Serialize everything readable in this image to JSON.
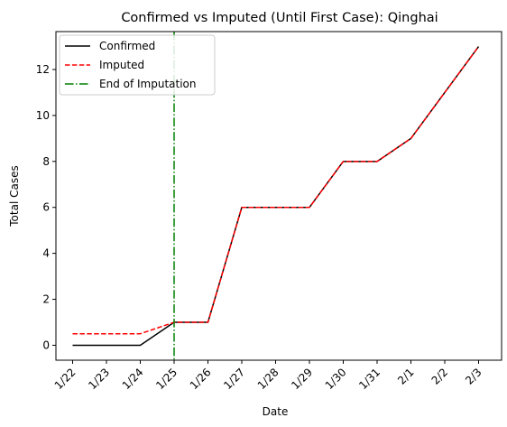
{
  "chart_data": {
    "type": "line",
    "title": "Confirmed vs Imputed (Until First Case): Qinghai",
    "xlabel": "Date",
    "ylabel": "Total Cases",
    "categories": [
      "1/22",
      "1/23",
      "1/24",
      "1/25",
      "1/26",
      "1/27",
      "1/28",
      "1/29",
      "1/30",
      "1/31",
      "2/1",
      "2/2",
      "2/3"
    ],
    "yticks": [
      0,
      2,
      4,
      6,
      8,
      10,
      12
    ],
    "ylim": [
      -0.65,
      13.65
    ],
    "legend_position": "top-left",
    "grid": false,
    "series": [
      {
        "name": "Confirmed",
        "color": "#000000",
        "style": "solid",
        "values": [
          0,
          0,
          0,
          1,
          1,
          6,
          6,
          6,
          8,
          8,
          9,
          11,
          13
        ]
      },
      {
        "name": "Imputed",
        "color": "#ff0000",
        "style": "dashed",
        "values": [
          0.5,
          0.5,
          0.5,
          1,
          1,
          6,
          6,
          6,
          8,
          8,
          9,
          11,
          13
        ]
      }
    ],
    "vline": {
      "name": "End of Imputation",
      "color": "#008000",
      "style": "dashdot",
      "x": "1/25"
    }
  }
}
